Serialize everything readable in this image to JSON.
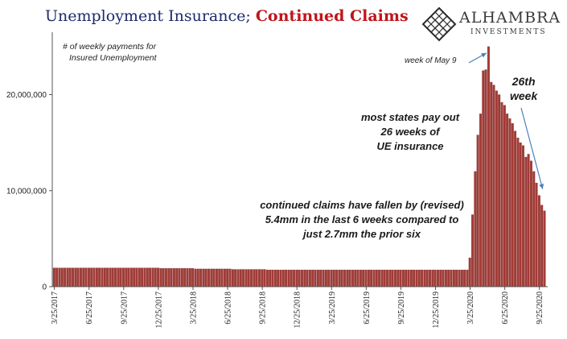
{
  "header": {
    "title_part1": "Unemployment Insurance;",
    "title_part2": "Continued Claims",
    "subtitle_line1": "# of weekly payments for",
    "subtitle_line2": "Insured Unemployment"
  },
  "logo": {
    "name": "ALHAMBRA",
    "sub": "INVESTMENTS",
    "icon": "diamond-lattice-icon"
  },
  "annotations": {
    "peak_label": "week of May 9",
    "week26_line1": "26th",
    "week26_line2": "week",
    "states_line1": "most states pay out",
    "states_line2": "26 weeks of",
    "states_line3": "UE insurance",
    "claims_line1": "continued claims have fallen by (revised)",
    "claims_line2": "5.4mm in the last 6 weeks compared to",
    "claims_line3": "just 2.7mm the prior six"
  },
  "colors": {
    "bar": "#a43b36",
    "bar_edge": "#7a2a26",
    "axis": "#555555",
    "arrow": "#4a7ebb"
  },
  "chart_data": {
    "type": "bar",
    "ylim": [
      0,
      26500000
    ],
    "yticks": [
      0,
      10000000,
      20000000
    ],
    "ytick_labels": [
      "0",
      "10,000,000",
      "20,000,000"
    ],
    "xtick_labels": [
      "3/25/2017",
      "6/25/2017",
      "9/25/2017",
      "12/25/2017",
      "3/25/2018",
      "6/25/2018",
      "9/25/2018",
      "12/25/2018",
      "3/25/2019",
      "6/25/2019",
      "9/25/2019",
      "12/25/2019",
      "3/25/2020",
      "6/25/2020",
      "9/25/2020"
    ],
    "xtick_bar_index": [
      0,
      13,
      26,
      39,
      52,
      65,
      78,
      91,
      104,
      117,
      130,
      143,
      156,
      169,
      182
    ],
    "series": [
      {
        "values": [
          1950000,
          1950000,
          1950000,
          1950000,
          1950000,
          1950000,
          1950000,
          1950000,
          1950000,
          1950000,
          1950000,
          1950000,
          1950000,
          1950000,
          1950000,
          1950000,
          1950000,
          1950000,
          1950000,
          1950000,
          1950000,
          1950000,
          1950000,
          1950000,
          1950000,
          1950000,
          1950000,
          1950000,
          1950000,
          1950000,
          1950000,
          1950000,
          1950000,
          1950000,
          1950000,
          1950000,
          1950000,
          1950000,
          1950000,
          1950000,
          1900000,
          1900000,
          1900000,
          1900000,
          1900000,
          1900000,
          1900000,
          1900000,
          1900000,
          1900000,
          1900000,
          1900000,
          1900000,
          1850000,
          1850000,
          1850000,
          1850000,
          1850000,
          1850000,
          1850000,
          1850000,
          1850000,
          1850000,
          1850000,
          1850000,
          1850000,
          1850000,
          1800000,
          1800000,
          1800000,
          1800000,
          1800000,
          1800000,
          1800000,
          1800000,
          1800000,
          1800000,
          1800000,
          1800000,
          1800000,
          1750000,
          1750000,
          1750000,
          1750000,
          1750000,
          1750000,
          1750000,
          1750000,
          1750000,
          1750000,
          1750000,
          1750000,
          1750000,
          1750000,
          1750000,
          1750000,
          1750000,
          1750000,
          1750000,
          1750000,
          1750000,
          1750000,
          1750000,
          1750000,
          1750000,
          1750000,
          1750000,
          1750000,
          1750000,
          1750000,
          1750000,
          1750000,
          1750000,
          1750000,
          1750000,
          1750000,
          1750000,
          1750000,
          1750000,
          1750000,
          1750000,
          1750000,
          1750000,
          1750000,
          1750000,
          1750000,
          1750000,
          1750000,
          1750000,
          1750000,
          1750000,
          1750000,
          1750000,
          1750000,
          1750000,
          1750000,
          1750000,
          1750000,
          1750000,
          1750000,
          1750000,
          1750000,
          1750000,
          1750000,
          1750000,
          1750000,
          1750000,
          1750000,
          1750000,
          1750000,
          1750000,
          1750000,
          1750000,
          1750000,
          1750000,
          1750000,
          3000000,
          7500000,
          12000000,
          15800000,
          18000000,
          22500000,
          22600000,
          25000000,
          21300000,
          21000000,
          20400000,
          20000000,
          19200000,
          18900000,
          18000000,
          17500000,
          17000000,
          16200000,
          15500000,
          15000000,
          14700000,
          13500000,
          13800000,
          13100000,
          12000000,
          10800000,
          9500000,
          8500000,
          7900000
        ]
      }
    ],
    "annotations": [
      {
        "text": "week of May 9",
        "bar_index": 163
      },
      {
        "text": "26th week",
        "bar_index": 182
      }
    ]
  }
}
